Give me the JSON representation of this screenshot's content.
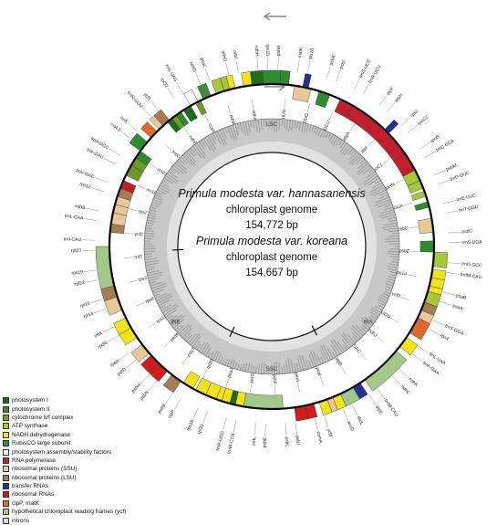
{
  "center": {
    "line1_name": "Primula modesta var. hannasanensis",
    "line1_sub": "chloroplast genome",
    "line1_size": "154,772 bp",
    "line2_name": "Primula modesta var. koreana",
    "line2_sub": "chloroplast genome",
    "line2_size": "154,667 bp"
  },
  "regions": [
    "LSC",
    "IRB",
    "SSC",
    "IRA"
  ],
  "legend": [
    {
      "label": "photosystem I",
      "color": "#1f6b1f"
    },
    {
      "label": "photosystem II",
      "color": "#2e8b2e"
    },
    {
      "label": "cytochrome b/f complex",
      "color": "#6d9b2a"
    },
    {
      "label": "ATP synthase",
      "color": "#a7c83a"
    },
    {
      "label": "NADH dehydrogenase",
      "color": "#f2e21c"
    },
    {
      "label": "RubisCO large subunit",
      "color": "#3f8a3f"
    },
    {
      "label": "photosystem assembly/stability factors",
      "color": "#ffffff"
    },
    {
      "label": "RNA polymerase",
      "color": "#c0202e"
    },
    {
      "label": "ribosomal proteins (SSU)",
      "color": "#e8c79a"
    },
    {
      "label": "ribosomal proteins (LSU)",
      "color": "#a77c52"
    },
    {
      "label": "transfer RNAs",
      "color": "#24318f"
    },
    {
      "label": "ribosomal RNAs",
      "color": "#d11c1c"
    },
    {
      "label": "clpP, matK",
      "color": "#e0682a"
    },
    {
      "label": "hypothetical chloroplast reading frames (ycf)",
      "color": "#a2c98a"
    },
    {
      "label": "introns",
      "color": "#d9d9d9"
    }
  ],
  "gene_labels": {
    "outer": [
      "psbA",
      "trnK-UUU",
      "matK",
      "rps16",
      "trnQ-UUG",
      "psbK",
      "psbI",
      "trnS-GCU",
      "trnG-UCC",
      "trnR-UCU",
      "atpA",
      "atpF",
      "atpH",
      "atpI",
      "rps2",
      "rpoC2",
      "rpoC1",
      "rpoB",
      "trnC-GCA",
      "petN",
      "psbM",
      "trnD-GUC",
      "trnY-GUA",
      "trnE-UUC",
      "trnT-GGU",
      "psbD",
      "psbC",
      "trnS-UGA",
      "psbZ",
      "trnG-GCC",
      "trnfM-CAU",
      "rps14",
      "psaB",
      "psaA",
      "ycf3",
      "trnS-GGA",
      "rps4",
      "trnT-UGU",
      "trnL-UAA",
      "trnF-GAA",
      "ndhJ",
      "ndhK",
      "ndhC",
      "trnV-UAC",
      "trnM-CAU",
      "atpE",
      "atpB",
      "rbcL",
      "accD",
      "psaI",
      "ycf4",
      "cemA",
      "petA",
      "psbJ",
      "psbL",
      "psbF",
      "psbE",
      "petL",
      "petG",
      "trnW-CCA",
      "trnP-UGG",
      "psaJ",
      "rpl33",
      "rps18",
      "rpl20",
      "clpP",
      "psbB",
      "psbT",
      "psbN",
      "psbH",
      "petB",
      "petD",
      "rpoA",
      "rps11",
      "rpl36",
      "infA",
      "rps8",
      "rpl14",
      "rpl16",
      "rps3",
      "rpl22",
      "rps19",
      "rpl2",
      "rpl23",
      "trnI-CAU",
      "ycf2",
      "trnL-CAA",
      "ndhB",
      "rps7",
      "rps12",
      "trnV-GAC",
      "rrn16",
      "trnI-GAU",
      "trnA-UGC",
      "rrn23",
      "rrn4.5",
      "rrn5",
      "trnR-ACG",
      "trnN-GUU",
      "ycf1",
      "ndhF",
      "rpl32",
      "trnL-UAG",
      "ccsA",
      "ndhD",
      "psaC",
      "ndhE",
      "ndhG",
      "ndhI",
      "ndhA",
      "ndhH",
      "rps15"
    ]
  }
}
